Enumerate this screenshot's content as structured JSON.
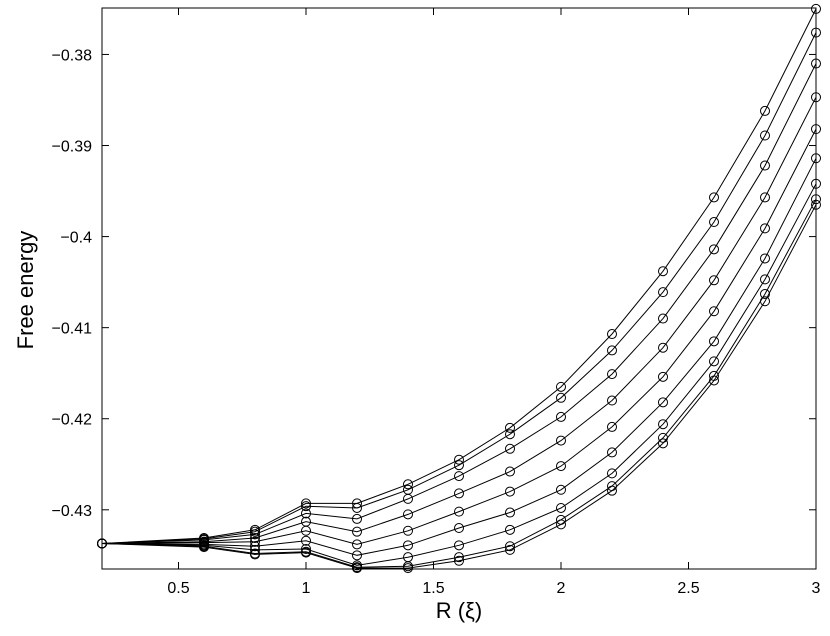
{
  "chart_data": {
    "type": "line",
    "title": "",
    "xlabel": "R (ξ)",
    "ylabel": "Free energy",
    "xlim": [
      0.2,
      3.0
    ],
    "ylim": [
      -0.4365,
      -0.3749
    ],
    "x_ticks": [
      0.5,
      1,
      1.5,
      2,
      2.5,
      3
    ],
    "x_tick_labels": [
      "0.5",
      "1",
      "1.5",
      "2",
      "2.5",
      "3"
    ],
    "y_ticks": [
      -0.43,
      -0.42,
      -0.41,
      -0.4,
      -0.39,
      -0.38
    ],
    "y_tick_labels": [
      "−0.43",
      "−0.42",
      "−0.41",
      "−0.4",
      "−0.39",
      "−0.38"
    ],
    "grid": false,
    "marker": "open-circle",
    "line_color": "#000000",
    "x": [
      0.2,
      0.6,
      0.8,
      1.0,
      1.2,
      1.4,
      1.6,
      1.8,
      2.0,
      2.2,
      2.4,
      2.6,
      2.8,
      3.0
    ],
    "series": [
      {
        "values": [
          -0.4337,
          -0.4331,
          -0.4322,
          -0.4293,
          -0.4293,
          -0.4272,
          -0.4245,
          -0.421,
          -0.4165,
          -0.4107,
          -0.4038,
          -0.3957,
          -0.3862,
          -0.375
        ]
      },
      {
        "values": [
          -0.4337,
          -0.4332,
          -0.4324,
          -0.4296,
          -0.4298,
          -0.4278,
          -0.4251,
          -0.4217,
          -0.4177,
          -0.4125,
          -0.4061,
          -0.3984,
          -0.3889,
          -0.3776
        ]
      },
      {
        "values": [
          -0.4337,
          -0.4333,
          -0.4327,
          -0.4304,
          -0.431,
          -0.4288,
          -0.4263,
          -0.4233,
          -0.4198,
          -0.4151,
          -0.409,
          -0.4014,
          -0.3922,
          -0.381
        ]
      },
      {
        "values": [
          -0.4337,
          -0.4335,
          -0.4331,
          -0.4313,
          -0.4324,
          -0.4305,
          -0.4282,
          -0.4258,
          -0.4224,
          -0.418,
          -0.4122,
          -0.4048,
          -0.3957,
          -0.3847
        ]
      },
      {
        "values": [
          -0.4337,
          -0.4336,
          -0.4335,
          -0.4323,
          -0.4338,
          -0.4323,
          -0.4302,
          -0.428,
          -0.4252,
          -0.4209,
          -0.4154,
          -0.4082,
          -0.3991,
          -0.3882
        ]
      },
      {
        "values": [
          -0.4337,
          -0.4338,
          -0.434,
          -0.4334,
          -0.435,
          -0.4339,
          -0.432,
          -0.4303,
          -0.4278,
          -0.4237,
          -0.4182,
          -0.4115,
          -0.4024,
          -0.3914
        ]
      },
      {
        "values": [
          -0.4337,
          -0.4339,
          -0.4344,
          -0.4343,
          -0.4361,
          -0.4352,
          -0.4339,
          -0.4322,
          -0.4298,
          -0.426,
          -0.4206,
          -0.4137,
          -0.4047,
          -0.3942
        ]
      },
      {
        "values": [
          -0.4337,
          -0.434,
          -0.4348,
          -0.4346,
          -0.4363,
          -0.4362,
          -0.4352,
          -0.434,
          -0.4311,
          -0.4274,
          -0.4221,
          -0.4153,
          -0.4063,
          -0.3959
        ]
      },
      {
        "values": [
          -0.4337,
          -0.4341,
          -0.4349,
          -0.4347,
          -0.4364,
          -0.4364,
          -0.4356,
          -0.4344,
          -0.4316,
          -0.4279,
          -0.4227,
          -0.4158,
          -0.4071,
          -0.3965
        ]
      }
    ]
  }
}
